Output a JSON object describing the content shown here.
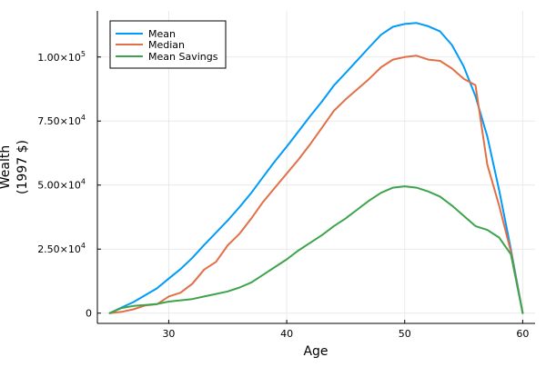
{
  "chart_data": {
    "type": "line",
    "xlabel": "Age",
    "ylabel_lines": [
      "Wealth",
      "(1997 $)"
    ],
    "xlim": [
      23.95,
      61.05
    ],
    "ylim": [
      -4000,
      118000
    ],
    "xticks": [
      {
        "value": 30,
        "label": "30"
      },
      {
        "value": 40,
        "label": "40"
      },
      {
        "value": 50,
        "label": "50"
      },
      {
        "value": 60,
        "label": "60"
      }
    ],
    "yticks": [
      {
        "value": 0,
        "mantissa": "0",
        "exponent": ""
      },
      {
        "value": 25000,
        "mantissa": "2.50×10",
        "exponent": "4"
      },
      {
        "value": 50000,
        "mantissa": "5.00×10",
        "exponent": "4"
      },
      {
        "value": 75000,
        "mantissa": "7.50×10",
        "exponent": "4"
      },
      {
        "value": 100000,
        "mantissa": "1.00×10",
        "exponent": "5"
      }
    ],
    "grid": true,
    "legend_position": "top-left",
    "x": [
      25,
      26,
      27,
      28,
      29,
      30,
      31,
      32,
      33,
      34,
      35,
      36,
      37,
      38,
      39,
      40,
      41,
      42,
      43,
      44,
      45,
      46,
      47,
      48,
      49,
      50,
      51,
      52,
      53,
      54,
      55,
      56,
      57,
      58,
      59,
      60
    ],
    "series": [
      {
        "name": "Mean",
        "color": "#009af9",
        "values": [
          0,
          2200,
          4300,
          7000,
          9700,
          13500,
          17200,
          21600,
          26600,
          31400,
          36200,
          41400,
          47000,
          53200,
          59300,
          65000,
          71000,
          77000,
          82700,
          88900,
          93800,
          98800,
          103800,
          108700,
          111800,
          112900,
          113300,
          112000,
          110000,
          104700,
          96300,
          84700,
          69000,
          48000,
          25000,
          0
        ]
      },
      {
        "name": "Median",
        "color": "#e26f46",
        "values": [
          0,
          500,
          1500,
          3000,
          3500,
          6500,
          8000,
          11500,
          17000,
          20000,
          26500,
          31000,
          37000,
          43500,
          49000,
          54500,
          60000,
          66000,
          72500,
          79000,
          83500,
          87500,
          91500,
          96000,
          99000,
          100000,
          100500,
          99000,
          98500,
          95500,
          91500,
          89000,
          58000,
          42000,
          24000,
          0
        ]
      },
      {
        "name": "Mean Savings",
        "color": "#3da44d",
        "values": [
          0,
          2000,
          2800,
          3200,
          3600,
          4500,
          5000,
          5500,
          6500,
          7500,
          8500,
          10000,
          12000,
          15000,
          18000,
          21000,
          24500,
          27500,
          30500,
          34000,
          37000,
          40500,
          44000,
          47000,
          49000,
          49500,
          49000,
          47500,
          45500,
          42000,
          38000,
          34000,
          32500,
          29500,
          23000,
          0
        ]
      }
    ]
  }
}
